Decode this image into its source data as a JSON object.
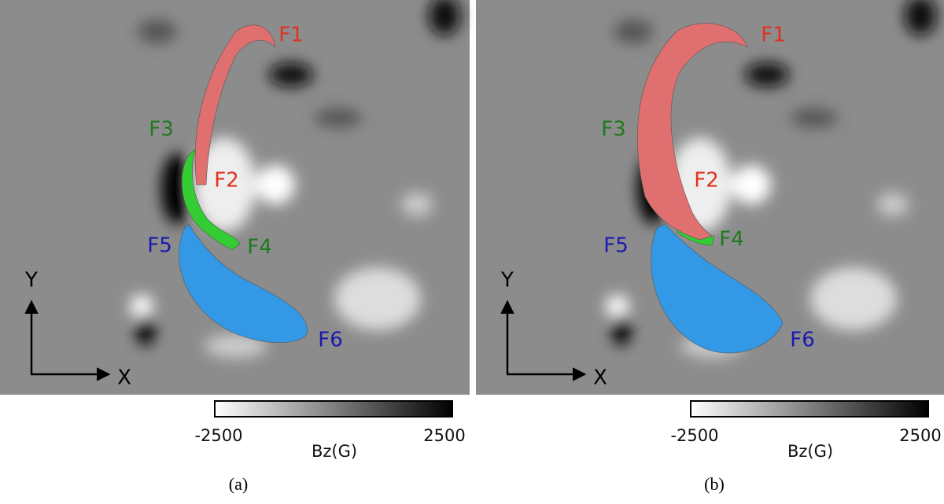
{
  "panels": [
    {
      "labels": [
        "F1",
        "F2",
        "F3",
        "F4",
        "F5",
        "F6"
      ],
      "axes": {
        "x": "X",
        "y": "Y"
      },
      "colorbar": {
        "min": -2500,
        "max": 2500,
        "title": "Bz(G)"
      },
      "caption": "(a)"
    },
    {
      "labels": [
        "F1",
        "F2",
        "F3",
        "F4",
        "F5",
        "F6"
      ],
      "axes": {
        "x": "X",
        "y": "Y"
      },
      "colorbar": {
        "min": -2500,
        "max": 2500,
        "title": "Bz(G)"
      },
      "caption": "(b)"
    }
  ]
}
